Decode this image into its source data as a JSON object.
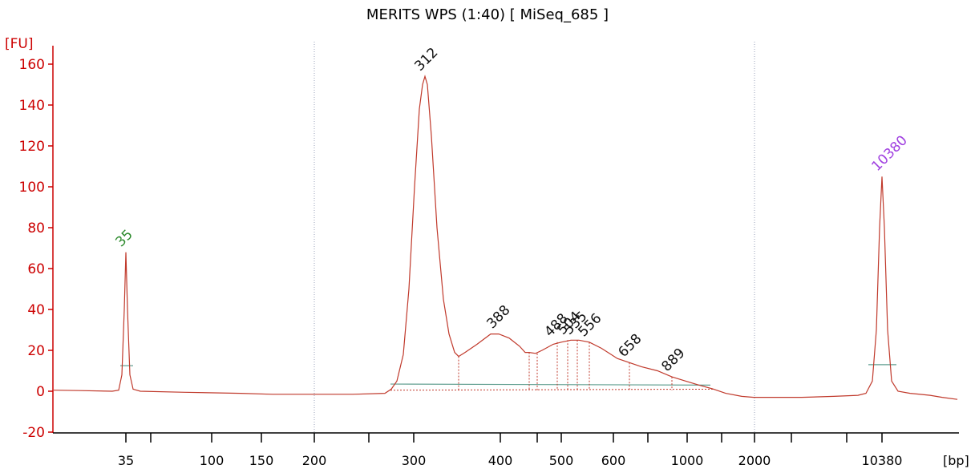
{
  "title": "MERITS WPS (1:40)  [ MiSeq_685 ]",
  "chart_data": {
    "type": "line",
    "title": "MERITS WPS (1:40)  [ MiSeq_685 ]",
    "y_unit": "[FU]",
    "x_unit": "[bp]",
    "ylim": [
      -20,
      165
    ],
    "yticks": [
      -20,
      0,
      20,
      40,
      60,
      80,
      100,
      120,
      140,
      160
    ],
    "xticks": [
      "35",
      "",
      "100",
      "150",
      "200",
      "",
      "300",
      "400",
      "",
      "500",
      "600",
      "",
      "1000",
      "",
      "2000",
      "",
      "",
      "10380"
    ],
    "x_scale": "ladder (nonlinear)",
    "grid": "vertical dotted lines at 200 and 2000",
    "colors": {
      "trace": "#c0392b",
      "axis": "#cc0000",
      "baseline": "#5f9e8f",
      "lower_marker": "#2e8b2e",
      "upper_marker": "#a040e0"
    },
    "markers": [
      {
        "label": "35",
        "x_bp": 35,
        "y": 68,
        "color": "#2e8b2e"
      },
      {
        "label": "10380",
        "x_bp": 10380,
        "y": 105,
        "color": "#a040e0"
      }
    ],
    "peaks": [
      {
        "label": "312",
        "x_bp": 312,
        "y": 154
      },
      {
        "label": "388",
        "x_bp": 388,
        "y": 28
      },
      {
        "label": "488",
        "x_bp": 488,
        "y": 24
      },
      {
        "label": "504",
        "x_bp": 504,
        "y": 25
      },
      {
        "label": "535",
        "x_bp": 535,
        "y": 25
      },
      {
        "label": "556",
        "x_bp": 556,
        "y": 24
      },
      {
        "label": "658",
        "x_bp": 658,
        "y": 14
      },
      {
        "label": "889",
        "x_bp": 889,
        "y": 7
      }
    ],
    "series": [
      {
        "points": [
          [
            67,
            0.5
          ],
          [
            100,
            0.3
          ],
          [
            140,
            0
          ],
          [
            148,
            0.5
          ],
          [
            152,
            8
          ],
          [
            155,
            40
          ],
          [
            157,
            68
          ],
          [
            159,
            40
          ],
          [
            162,
            8
          ],
          [
            166,
            1
          ],
          [
            175,
            0
          ],
          [
            230,
            -0.5
          ],
          [
            300,
            -1
          ],
          [
            340,
            -1.5
          ],
          [
            392,
            -1.5
          ],
          [
            440,
            -1.5
          ],
          [
            480,
            -1
          ],
          [
            488,
            1
          ],
          [
            495,
            5
          ],
          [
            503,
            18
          ],
          [
            510,
            50
          ],
          [
            517,
            100
          ],
          [
            523,
            138
          ],
          [
            527,
            150
          ],
          [
            530,
            154
          ],
          [
            533,
            150
          ],
          [
            538,
            125
          ],
          [
            545,
            80
          ],
          [
            553,
            45
          ],
          [
            560,
            28
          ],
          [
            567,
            19
          ],
          [
            572,
            17
          ],
          [
            580,
            19
          ],
          [
            595,
            23
          ],
          [
            612,
            28
          ],
          [
            622,
            28
          ],
          [
            635,
            26
          ],
          [
            648,
            22
          ],
          [
            655,
            19
          ],
          [
            660,
            19
          ],
          [
            668,
            18.5
          ],
          [
            676,
            20
          ],
          [
            690,
            23
          ],
          [
            700,
            24
          ],
          [
            712,
            25
          ],
          [
            722,
            25
          ],
          [
            735,
            24
          ],
          [
            750,
            21
          ],
          [
            770,
            16
          ],
          [
            785,
            14
          ],
          [
            800,
            12
          ],
          [
            820,
            10
          ],
          [
            838,
            7
          ],
          [
            855,
            5
          ],
          [
            872,
            3
          ],
          [
            890,
            1
          ],
          [
            905,
            -1
          ],
          [
            925,
            -2.5
          ],
          [
            940,
            -3
          ],
          [
            960,
            -3
          ],
          [
            1000,
            -3
          ],
          [
            1040,
            -2.5
          ],
          [
            1070,
            -2
          ],
          [
            1080,
            -1
          ],
          [
            1088,
            5
          ],
          [
            1093,
            30
          ],
          [
            1097,
            80
          ],
          [
            1100,
            105
          ],
          [
            1103,
            80
          ],
          [
            1107,
            30
          ],
          [
            1112,
            5
          ],
          [
            1120,
            0
          ],
          [
            1135,
            -1
          ],
          [
            1160,
            -2
          ],
          [
            1175,
            -3
          ],
          [
            1194,
            -4
          ]
        ]
      }
    ]
  }
}
